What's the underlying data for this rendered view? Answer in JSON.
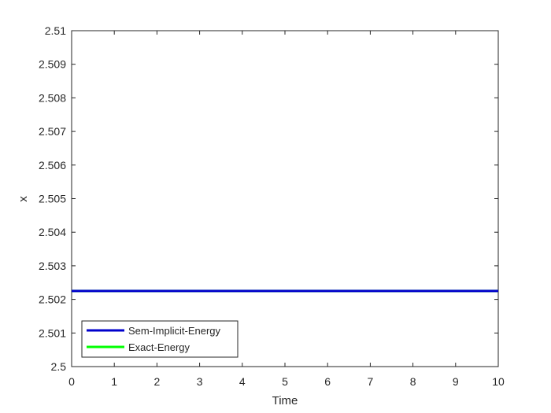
{
  "chart_data": {
    "type": "line",
    "title": "",
    "xlabel": "Time",
    "ylabel": "x",
    "xlim": [
      0,
      10
    ],
    "ylim": [
      2.5,
      2.51
    ],
    "xticks": [
      "0",
      "1",
      "2",
      "3",
      "4",
      "5",
      "6",
      "7",
      "8",
      "9",
      "10"
    ],
    "yticks": [
      "2.5",
      "2.501",
      "2.502",
      "2.503",
      "2.504",
      "2.505",
      "2.506",
      "2.507",
      "2.508",
      "2.509",
      "2.51"
    ],
    "grid": false,
    "legend_position": "bottom-left",
    "series": [
      {
        "name": "Sem-Implicit-Energy",
        "color": "#0000cc",
        "x": [
          0,
          10
        ],
        "y": [
          2.50225,
          2.50225
        ]
      },
      {
        "name": "Exact-Energy",
        "color": "#00ff00",
        "x": [
          0,
          10
        ],
        "y": [
          2.50225,
          2.50225
        ]
      }
    ]
  }
}
